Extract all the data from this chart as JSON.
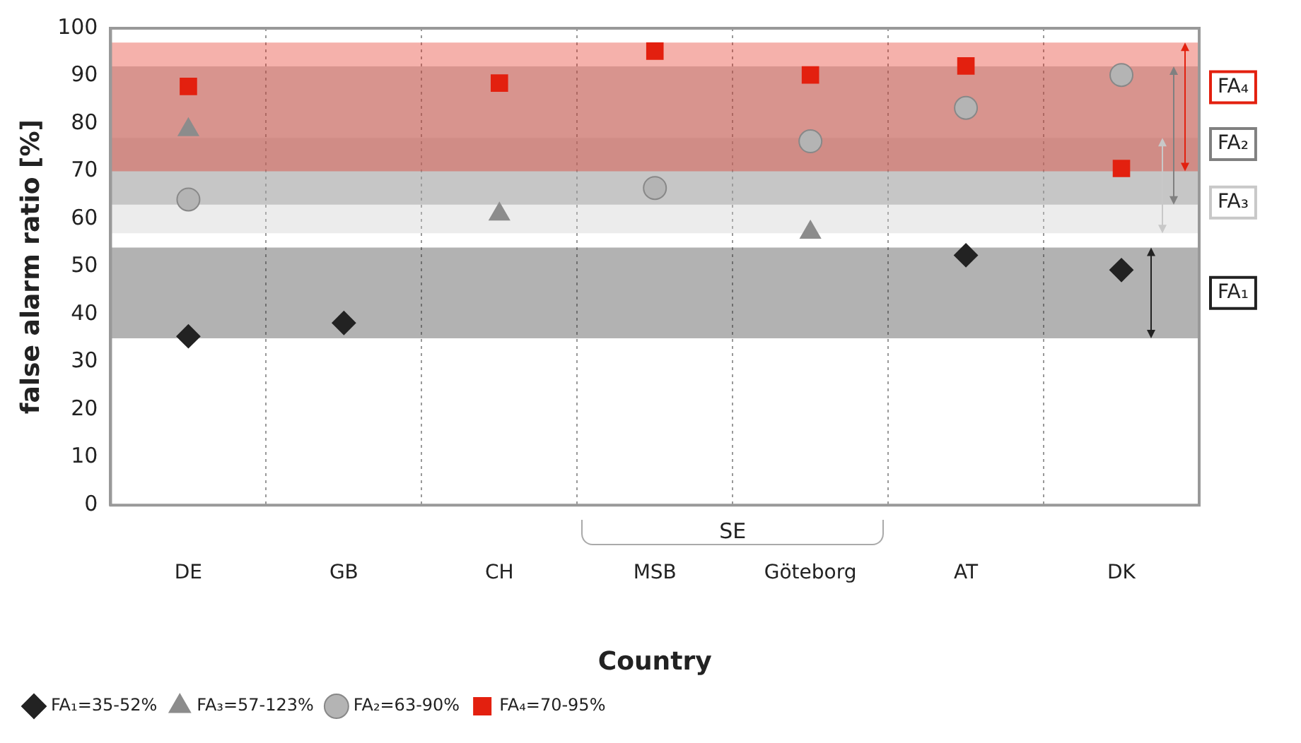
{
  "chart_data": {
    "type": "scatter",
    "categories": [
      "DE",
      "GB",
      "CH",
      "MSB",
      "Göteborg",
      "AT",
      "DK"
    ],
    "series": [
      {
        "name": "FA₁=35-52%",
        "color": "#222222",
        "marker": "diamond",
        "values": [
          35.4,
          38.2,
          null,
          null,
          null,
          52.4,
          49.3
        ]
      },
      {
        "name": "FA₃=57-123%",
        "color": "#8c8c8c",
        "marker": "triangle",
        "values": [
          78.7,
          null,
          61,
          null,
          57.2,
          null,
          null
        ]
      },
      {
        "name": "FA₂=63-90%",
        "color": "#b4b4b4",
        "marker": "circle",
        "values": [
          64.1,
          null,
          null,
          66.5,
          76.3,
          83.3,
          90.2
        ]
      },
      {
        "name": "FA₄=70-95%",
        "color": "#e3200f",
        "marker": "square",
        "values": [
          87.8,
          null,
          88.5,
          95.2,
          90.2,
          92.1,
          70.6
        ]
      }
    ],
    "bands": [
      {
        "axis": "y",
        "from": 35,
        "to": 54,
        "label": "FA₁",
        "color": "#222222"
      },
      {
        "axis": "y",
        "from": 57,
        "to": 77,
        "label": "FA₃",
        "color": "#c8c8c8"
      },
      {
        "axis": "y",
        "from": 63,
        "to": 92,
        "label": "FA₂",
        "color": "#808080"
      },
      {
        "axis": "y",
        "from": 70,
        "to": 97,
        "label": "FA₄",
        "color": "#e3200f"
      }
    ],
    "annotations": [
      "SE"
    ],
    "ylim": [
      0,
      100
    ],
    "yticks": [
      0,
      10,
      20,
      30,
      40,
      50,
      60,
      70,
      80,
      90,
      100
    ],
    "ylabel": "false alarm ratio [%]",
    "xlabel": "Country",
    "grid": "x",
    "legend": "bottom left"
  }
}
